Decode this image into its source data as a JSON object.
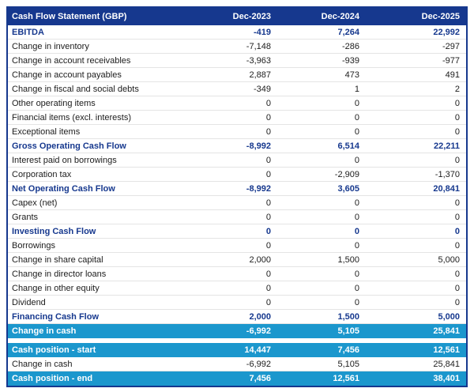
{
  "colors": {
    "header_bg": "#16388e",
    "highlight_bg": "#1b97cd",
    "bold_text": "#16388e",
    "body_text": "#1c1c1c",
    "grid_line": "#e4e4e4"
  },
  "table": {
    "title": "Cash Flow Statement (GBP)",
    "columns": [
      "Dec-2023",
      "Dec-2024",
      "Dec-2025"
    ],
    "rows": [
      {
        "label": "EBITDA",
        "values": [
          "-419",
          "7,264",
          "22,992"
        ],
        "style": "bold"
      },
      {
        "label": "Change in inventory",
        "values": [
          "-7,148",
          "-286",
          "-297"
        ],
        "style": "normal"
      },
      {
        "label": "Change in account receivables",
        "values": [
          "-3,963",
          "-939",
          "-977"
        ],
        "style": "normal"
      },
      {
        "label": "Change in account payables",
        "values": [
          "2,887",
          "473",
          "491"
        ],
        "style": "normal"
      },
      {
        "label": "Change in fiscal and social debts",
        "values": [
          "-349",
          "1",
          "2"
        ],
        "style": "normal"
      },
      {
        "label": "Other operating items",
        "values": [
          "0",
          "0",
          "0"
        ],
        "style": "normal"
      },
      {
        "label": "Financial items (excl. interests)",
        "values": [
          "0",
          "0",
          "0"
        ],
        "style": "normal"
      },
      {
        "label": "Exceptional items",
        "values": [
          "0",
          "0",
          "0"
        ],
        "style": "normal"
      },
      {
        "label": "Gross Operating Cash Flow",
        "values": [
          "-8,992",
          "6,514",
          "22,211"
        ],
        "style": "bold"
      },
      {
        "label": "Interest paid on borrowings",
        "values": [
          "0",
          "0",
          "0"
        ],
        "style": "normal"
      },
      {
        "label": "Corporation tax",
        "values": [
          "0",
          "-2,909",
          "-1,370"
        ],
        "style": "normal"
      },
      {
        "label": "Net Operating Cash Flow",
        "values": [
          "-8,992",
          "3,605",
          "20,841"
        ],
        "style": "bold"
      },
      {
        "label": "Capex (net)",
        "values": [
          "0",
          "0",
          "0"
        ],
        "style": "normal"
      },
      {
        "label": "Grants",
        "values": [
          "0",
          "0",
          "0"
        ],
        "style": "normal"
      },
      {
        "label": "Investing Cash Flow",
        "values": [
          "0",
          "0",
          "0"
        ],
        "style": "bold"
      },
      {
        "label": "Borrowings",
        "values": [
          "0",
          "0",
          "0"
        ],
        "style": "normal"
      },
      {
        "label": "Change in share capital",
        "values": [
          "2,000",
          "1,500",
          "5,000"
        ],
        "style": "normal"
      },
      {
        "label": "Change in director loans",
        "values": [
          "0",
          "0",
          "0"
        ],
        "style": "normal"
      },
      {
        "label": "Change in other equity",
        "values": [
          "0",
          "0",
          "0"
        ],
        "style": "normal"
      },
      {
        "label": "Dividend",
        "values": [
          "0",
          "0",
          "0"
        ],
        "style": "normal"
      },
      {
        "label": "Financing Cash Flow",
        "values": [
          "2,000",
          "1,500",
          "5,000"
        ],
        "style": "bold"
      },
      {
        "label": "Change in cash",
        "values": [
          "-6,992",
          "5,105",
          "25,841"
        ],
        "style": "highlight"
      }
    ],
    "footer_rows": [
      {
        "label": "Cash position - start",
        "values": [
          "14,447",
          "7,456",
          "12,561"
        ],
        "style": "highlight"
      },
      {
        "label": "Change in cash",
        "values": [
          "-6,992",
          "5,105",
          "25,841"
        ],
        "style": "normal"
      },
      {
        "label": "Cash position - end",
        "values": [
          "7,456",
          "12,561",
          "38,401"
        ],
        "style": "highlight"
      }
    ]
  }
}
